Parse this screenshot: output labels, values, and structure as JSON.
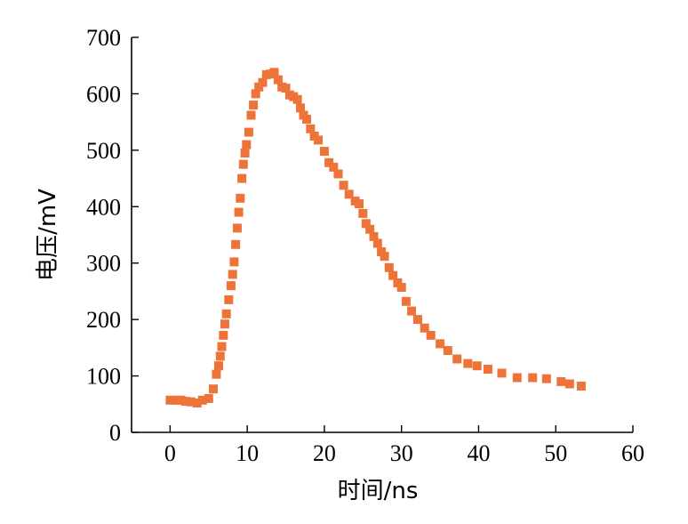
{
  "chart_data": {
    "type": "scatter",
    "title": "",
    "xlabel": "时间/ns",
    "ylabel": "电压/mV",
    "xlim": [
      -5,
      60
    ],
    "ylim": [
      0,
      700
    ],
    "xticks": [
      0,
      10,
      20,
      30,
      40,
      50,
      60
    ],
    "yticks": [
      0,
      100,
      200,
      300,
      400,
      500,
      600,
      700
    ],
    "grid": false,
    "legend": "none",
    "marker": "square",
    "color": "#EE7338",
    "points": [
      [
        0.0,
        57
      ],
      [
        0.8,
        57
      ],
      [
        1.4,
        57
      ],
      [
        2.0,
        55
      ],
      [
        2.7,
        54
      ],
      [
        3.5,
        52
      ],
      [
        4.2,
        57
      ],
      [
        5.0,
        60
      ],
      [
        5.6,
        77
      ],
      [
        6.0,
        103
      ],
      [
        6.3,
        118
      ],
      [
        6.5,
        135
      ],
      [
        6.7,
        152
      ],
      [
        6.9,
        172
      ],
      [
        7.1,
        192
      ],
      [
        7.3,
        210
      ],
      [
        7.6,
        235
      ],
      [
        7.9,
        260
      ],
      [
        8.1,
        280
      ],
      [
        8.3,
        302
      ],
      [
        8.5,
        333
      ],
      [
        8.7,
        362
      ],
      [
        8.9,
        390
      ],
      [
        9.1,
        415
      ],
      [
        9.3,
        450
      ],
      [
        9.5,
        475
      ],
      [
        9.7,
        495
      ],
      [
        9.9,
        510
      ],
      [
        10.2,
        532
      ],
      [
        10.5,
        562
      ],
      [
        10.8,
        580
      ],
      [
        11.1,
        600
      ],
      [
        11.5,
        612
      ],
      [
        12.0,
        620
      ],
      [
        12.5,
        634
      ],
      [
        13.0,
        635
      ],
      [
        13.5,
        638
      ],
      [
        14.0,
        625
      ],
      [
        14.5,
        612
      ],
      [
        15.0,
        610
      ],
      [
        15.5,
        598
      ],
      [
        16.0,
        595
      ],
      [
        16.5,
        590
      ],
      [
        16.9,
        575
      ],
      [
        17.3,
        562
      ],
      [
        17.7,
        555
      ],
      [
        18.2,
        538
      ],
      [
        18.7,
        525
      ],
      [
        19.2,
        518
      ],
      [
        20.0,
        498
      ],
      [
        20.6,
        478
      ],
      [
        21.2,
        470
      ],
      [
        21.8,
        458
      ],
      [
        22.5,
        438
      ],
      [
        23.2,
        422
      ],
      [
        24.0,
        410
      ],
      [
        24.5,
        405
      ],
      [
        25.0,
        388
      ],
      [
        25.4,
        370
      ],
      [
        25.9,
        360
      ],
      [
        26.4,
        347
      ],
      [
        26.9,
        335
      ],
      [
        27.4,
        320
      ],
      [
        27.8,
        312
      ],
      [
        28.4,
        292
      ],
      [
        28.9,
        278
      ],
      [
        29.5,
        265
      ],
      [
        30.0,
        257
      ],
      [
        30.6,
        232
      ],
      [
        31.3,
        215
      ],
      [
        32.1,
        200
      ],
      [
        33.0,
        185
      ],
      [
        33.8,
        172
      ],
      [
        35.0,
        157
      ],
      [
        36.0,
        145
      ],
      [
        37.2,
        130
      ],
      [
        38.6,
        122
      ],
      [
        39.8,
        118
      ],
      [
        41.2,
        112
      ],
      [
        43.0,
        105
      ],
      [
        45.0,
        97
      ],
      [
        47.0,
        97
      ],
      [
        48.8,
        95
      ],
      [
        50.7,
        90
      ],
      [
        51.8,
        86
      ],
      [
        53.3,
        82
      ]
    ]
  }
}
